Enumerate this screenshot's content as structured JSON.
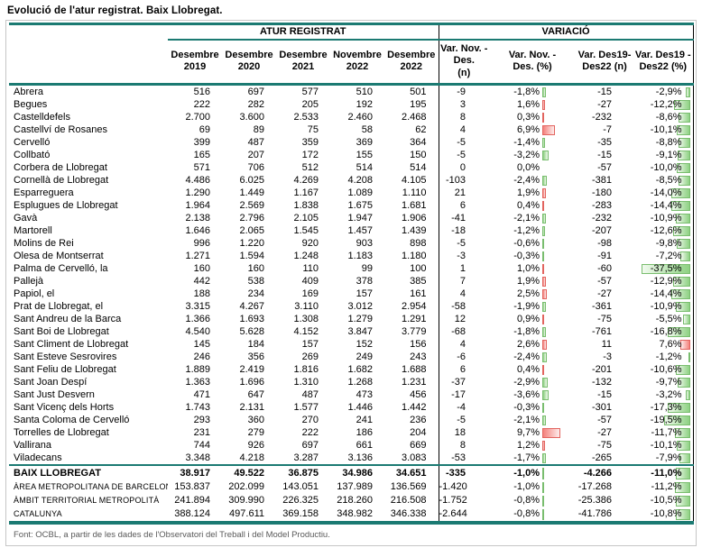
{
  "title": "Evolució de l'atur registrat. Baix Llobregat.",
  "colors": {
    "accent_teal": "#1B7A72",
    "bar_green": "#8ED183",
    "bar_red": "#F4817C",
    "divider_black": "#000000",
    "footer_gray": "#595959"
  },
  "table": {
    "group_headers": [
      {
        "label": "ATUR REGISTRAT"
      },
      {
        "label": "VARIACIÓ"
      }
    ],
    "column_headers": [
      "Desembre\n2019",
      "Desembre\n2020",
      "Desembre\n2021",
      "Novembre\n2022",
      "Desembre\n2022",
      "Var. Nov. -\nDes.\n(n)",
      "Var. Nov. -\nDes. (%)",
      "Var. Des19-\nDes22 (n)",
      "Var. Des19 -\nDes22 (%)"
    ],
    "rows": [
      {
        "name": "Abrera",
        "values": [
          "516",
          "697",
          "577",
          "510",
          "501",
          "-9",
          "-1,8%",
          "-15",
          "-2,9%"
        ]
      },
      {
        "name": "Begues",
        "values": [
          "222",
          "282",
          "205",
          "192",
          "195",
          "3",
          "1,6%",
          "-27",
          "-12,2%"
        ]
      },
      {
        "name": "Castelldefels",
        "values": [
          "2.700",
          "3.600",
          "2.533",
          "2.460",
          "2.468",
          "8",
          "0,3%",
          "-232",
          "-8,6%"
        ]
      },
      {
        "name": "Castellví de Rosanes",
        "values": [
          "69",
          "89",
          "75",
          "58",
          "62",
          "4",
          "6,9%",
          "-7",
          "-10,1%"
        ]
      },
      {
        "name": "Cervelló",
        "values": [
          "399",
          "487",
          "359",
          "369",
          "364",
          "-5",
          "-1,4%",
          "-35",
          "-8,8%"
        ]
      },
      {
        "name": "Collbató",
        "values": [
          "165",
          "207",
          "172",
          "155",
          "150",
          "-5",
          "-3,2%",
          "-15",
          "-9,1%"
        ]
      },
      {
        "name": "Corbera de Llobregat",
        "values": [
          "571",
          "706",
          "512",
          "514",
          "514",
          "0",
          "0,0%",
          "-57",
          "-10,0%"
        ]
      },
      {
        "name": "Cornellà de Llobregat",
        "values": [
          "4.486",
          "6.025",
          "4.269",
          "4.208",
          "4.105",
          "-103",
          "-2,4%",
          "-381",
          "-8,5%"
        ]
      },
      {
        "name": "Esparreguera",
        "values": [
          "1.290",
          "1.449",
          "1.167",
          "1.089",
          "1.110",
          "21",
          "1,9%",
          "-180",
          "-14,0%"
        ]
      },
      {
        "name": "Esplugues de Llobregat",
        "values": [
          "1.964",
          "2.569",
          "1.838",
          "1.675",
          "1.681",
          "6",
          "0,4%",
          "-283",
          "-14,4%"
        ]
      },
      {
        "name": "Gavà",
        "values": [
          "2.138",
          "2.796",
          "2.105",
          "1.947",
          "1.906",
          "-41",
          "-2,1%",
          "-232",
          "-10,9%"
        ]
      },
      {
        "name": "Martorell",
        "values": [
          "1.646",
          "2.065",
          "1.545",
          "1.457",
          "1.439",
          "-18",
          "-1,2%",
          "-207",
          "-12,6%"
        ]
      },
      {
        "name": "Molins de Rei",
        "values": [
          "996",
          "1.220",
          "920",
          "903",
          "898",
          "-5",
          "-0,6%",
          "-98",
          "-9,8%"
        ]
      },
      {
        "name": "Olesa de Montserrat",
        "values": [
          "1.271",
          "1.594",
          "1.248",
          "1.183",
          "1.180",
          "-3",
          "-0,3%",
          "-91",
          "-7,2%"
        ]
      },
      {
        "name": "Palma de Cervelló, la",
        "values": [
          "160",
          "160",
          "110",
          "99",
          "100",
          "1",
          "1,0%",
          "-60",
          "-37,5%"
        ]
      },
      {
        "name": "Pallejà",
        "values": [
          "442",
          "538",
          "409",
          "378",
          "385",
          "7",
          "1,9%",
          "-57",
          "-12,9%"
        ]
      },
      {
        "name": "Papiol, el",
        "values": [
          "188",
          "234",
          "169",
          "157",
          "161",
          "4",
          "2,5%",
          "-27",
          "-14,4%"
        ]
      },
      {
        "name": "Prat de Llobregat, el",
        "values": [
          "3.315",
          "4.267",
          "3.110",
          "3.012",
          "2.954",
          "-58",
          "-1,9%",
          "-361",
          "-10,9%"
        ]
      },
      {
        "name": "Sant Andreu de la Barca",
        "values": [
          "1.366",
          "1.693",
          "1.308",
          "1.279",
          "1.291",
          "12",
          "0,9%",
          "-75",
          "-5,5%"
        ]
      },
      {
        "name": "Sant Boi de Llobregat",
        "values": [
          "4.540",
          "5.628",
          "4.152",
          "3.847",
          "3.779",
          "-68",
          "-1,8%",
          "-761",
          "-16,8%"
        ]
      },
      {
        "name": "Sant Climent de Llobregat",
        "values": [
          "145",
          "184",
          "157",
          "152",
          "156",
          "4",
          "2,6%",
          "11",
          "7,6%"
        ]
      },
      {
        "name": "Sant Esteve Sesrovires",
        "values": [
          "246",
          "356",
          "269",
          "249",
          "243",
          "-6",
          "-2,4%",
          "-3",
          "-1,2%"
        ]
      },
      {
        "name": "Sant Feliu de Llobregat",
        "values": [
          "1.889",
          "2.419",
          "1.816",
          "1.682",
          "1.688",
          "6",
          "0,4%",
          "-201",
          "-10,6%"
        ]
      },
      {
        "name": "Sant Joan Despí",
        "values": [
          "1.363",
          "1.696",
          "1.310",
          "1.268",
          "1.231",
          "-37",
          "-2,9%",
          "-132",
          "-9,7%"
        ]
      },
      {
        "name": "Sant Just Desvern",
        "values": [
          "471",
          "647",
          "487",
          "473",
          "456",
          "-17",
          "-3,6%",
          "-15",
          "-3,2%"
        ]
      },
      {
        "name": "Sant Vicenç dels Horts",
        "values": [
          "1.743",
          "2.131",
          "1.577",
          "1.446",
          "1.442",
          "-4",
          "-0,3%",
          "-301",
          "-17,3%"
        ]
      },
      {
        "name": "Santa Coloma de Cervelló",
        "values": [
          "293",
          "360",
          "270",
          "241",
          "236",
          "-5",
          "-2,1%",
          "-57",
          "-19,5%"
        ]
      },
      {
        "name": "Torrelles de Llobregat",
        "values": [
          "231",
          "279",
          "222",
          "186",
          "204",
          "18",
          "9,7%",
          "-27",
          "-11,7%"
        ]
      },
      {
        "name": "Vallirana",
        "values": [
          "744",
          "926",
          "697",
          "661",
          "669",
          "8",
          "1,2%",
          "-75",
          "-10,1%"
        ]
      },
      {
        "name": "Viladecans",
        "values": [
          "3.348",
          "4.218",
          "3.287",
          "3.136",
          "3.083",
          "-53",
          "-1,7%",
          "-265",
          "-7,9%"
        ]
      }
    ],
    "summary_rows": [
      {
        "name": "BAIX LLOBREGAT",
        "style": "total",
        "values": [
          "38.917",
          "49.522",
          "36.875",
          "34.986",
          "34.651",
          "-335",
          "-1,0%",
          "-4.266",
          "-11,0%"
        ]
      },
      {
        "name": "ÀREA METROPOLITANA DE BARCELONA",
        "style": "region",
        "values": [
          "153.837",
          "202.099",
          "143.051",
          "137.989",
          "136.569",
          "-1.420",
          "-1,0%",
          "-17.268",
          "-11,2%"
        ]
      },
      {
        "name": "ÀMBIT TERRITORIAL METROPOLITÀ",
        "style": "region",
        "values": [
          "241.894",
          "309.990",
          "226.325",
          "218.260",
          "216.508",
          "-1.752",
          "-0,8%",
          "-25.386",
          "-10,5%"
        ]
      },
      {
        "name": "CATALUNYA",
        "style": "region",
        "values": [
          "388.124",
          "497.611",
          "369.158",
          "348.982",
          "346.338",
          "-2.644",
          "-0,8%",
          "-41.786",
          "-10,8%"
        ]
      }
    ]
  },
  "footer": "Font: OCBL, a partir de les dades de l'Observatori del Treball i del Model Productiu."
}
